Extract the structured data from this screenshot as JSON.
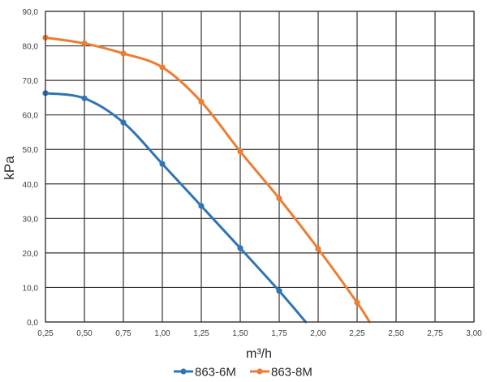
{
  "chart_data": {
    "type": "line",
    "title": "",
    "xlabel": "m³/h",
    "ylabel": "kPa",
    "xlim": [
      0.25,
      3.0
    ],
    "ylim": [
      0,
      90
    ],
    "grid": true,
    "legend_position": "bottom",
    "x_ticks": [
      0.25,
      0.5,
      0.75,
      1.0,
      1.25,
      1.5,
      1.75,
      2.0,
      2.25,
      2.5,
      2.75,
      3.0
    ],
    "x_tick_labels": [
      "0,25",
      "0,50",
      "0,75",
      "1,00",
      "1,25",
      "1,50",
      "1,75",
      "2,00",
      "2,25",
      "2,50",
      "2,75",
      "3,00"
    ],
    "y_ticks": [
      0,
      10,
      20,
      30,
      40,
      50,
      60,
      70,
      80,
      90
    ],
    "y_tick_labels": [
      "0,0",
      "10,0",
      "20,0",
      "30,0",
      "40,0",
      "50,0",
      "60,0",
      "70,0",
      "80,0",
      "90,0"
    ],
    "series": [
      {
        "name": "863-6M",
        "color": "#2e75b6",
        "points": [
          [
            0.25,
            66.3
          ],
          [
            0.5,
            64.8
          ],
          [
            0.75,
            57.8
          ],
          [
            1.0,
            45.8
          ],
          [
            1.25,
            33.6
          ],
          [
            1.5,
            21.4
          ],
          [
            1.75,
            9.0
          ],
          [
            1.92,
            0
          ]
        ],
        "markers": [
          0,
          1,
          2,
          3,
          4,
          5,
          6
        ]
      },
      {
        "name": "863-8M",
        "color": "#ed7d31",
        "points": [
          [
            0.25,
            82.4
          ],
          [
            0.5,
            80.7
          ],
          [
            0.75,
            77.8
          ],
          [
            1.0,
            73.8
          ],
          [
            1.25,
            63.8
          ],
          [
            1.5,
            49.4
          ],
          [
            1.75,
            35.8
          ],
          [
            2.0,
            21.2
          ],
          [
            2.25,
            5.6
          ],
          [
            2.33,
            0
          ]
        ],
        "markers": [
          0,
          1,
          2,
          3,
          4,
          5,
          6,
          7,
          8
        ]
      }
    ],
    "colors": {
      "grid": "#3b3030",
      "frame": "#3b3030",
      "axis_text": "#404040"
    }
  }
}
